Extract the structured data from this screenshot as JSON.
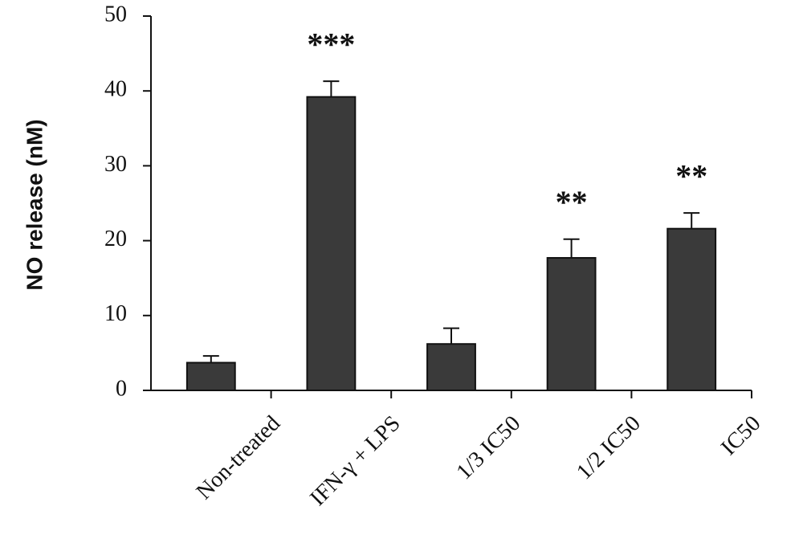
{
  "chart_data": {
    "type": "bar",
    "y_label": "NO release (nM)",
    "categories": [
      "Non-treated",
      "IFN-γ + LPS",
      "1/3 IC50",
      "1/2 IC50",
      "IC50"
    ],
    "values": [
      3.7,
      39.2,
      6.2,
      17.7,
      21.6
    ],
    "errors": [
      0.9,
      2.1,
      2.1,
      2.5,
      2.1
    ],
    "significance": [
      null,
      "***",
      null,
      "**",
      "**"
    ],
    "color": "#3a3a3a",
    "ylim": [
      0,
      50
    ],
    "yticks": [
      0,
      10,
      20,
      30,
      40,
      50
    ],
    "grid": false
  }
}
